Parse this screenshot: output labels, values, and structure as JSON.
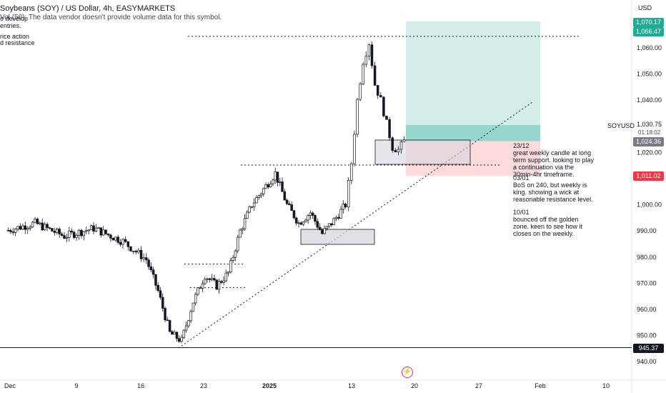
{
  "header": {
    "title": "Soybeans (SOY) / US Dollar, 4h, EASYMARKETS",
    "volume_note": "Vol (50): The data vendor doesn't provide volume data for this symbol."
  },
  "left_notes": [
    "o develop",
    "entries.",
    "",
    "rice action",
    "d resistance"
  ],
  "currency": "USD",
  "symbol": "SOYUSD",
  "countdown": "01:18:02",
  "annotations": [
    {
      "date": "23/12",
      "text": "great weekly candle at long term support. looking to play a continuation via the 30min-4hr timeframe."
    },
    {
      "date": "03/01",
      "text": "BoS on 240, but weekly is king. showing a wick at reasonable resistance level."
    },
    {
      "date": "10/01",
      "text": "bounced off the golden zone. keen to see how it closes on the weekly."
    }
  ],
  "price_labels": [
    {
      "value": "1,070.17",
      "color": "#22ab94"
    },
    {
      "value": "1,066.47",
      "color": "#22ab94"
    },
    {
      "value": "1,024.36",
      "color": "#787b86"
    },
    {
      "value": "1,011.02",
      "color": "#f23645"
    },
    {
      "value": "945.37",
      "color": "#131722"
    }
  ],
  "chart_data": {
    "type": "candlestick",
    "x_ticks": [
      "Dec",
      "9",
      "16",
      "23",
      "2025",
      "13",
      "20",
      "27",
      "Feb",
      "10"
    ],
    "y_ticks": [
      "1,060.00",
      "1,050.00",
      "1,040.00",
      "1,030.75",
      "1,020.00",
      "1,000.00",
      "990.00",
      "980.00",
      "970.00",
      "960.00",
      "950.00",
      "940.00"
    ],
    "ylim": [
      938,
      1076
    ],
    "series": [
      {
        "name": "SOYUSD",
        "close_path": [
          {
            "x": 0,
            "y": 990
          },
          {
            "x": 5,
            "y": 993
          },
          {
            "x": 10,
            "y": 988
          },
          {
            "x": 15,
            "y": 991
          },
          {
            "x": 20,
            "y": 986
          },
          {
            "x": 24,
            "y": 979
          },
          {
            "x": 26,
            "y": 967
          },
          {
            "x": 28,
            "y": 951
          },
          {
            "x": 30,
            "y": 948
          },
          {
            "x": 32,
            "y": 963
          },
          {
            "x": 34,
            "y": 973
          },
          {
            "x": 36,
            "y": 969
          },
          {
            "x": 38,
            "y": 974
          },
          {
            "x": 40,
            "y": 990
          },
          {
            "x": 42,
            "y": 1000
          },
          {
            "x": 44,
            "y": 1006
          },
          {
            "x": 46,
            "y": 1012
          },
          {
            "x": 48,
            "y": 1000
          },
          {
            "x": 50,
            "y": 993
          },
          {
            "x": 52,
            "y": 997
          },
          {
            "x": 54,
            "y": 989
          },
          {
            "x": 56,
            "y": 994
          },
          {
            "x": 58,
            "y": 1000
          },
          {
            "x": 59,
            "y": 1016
          },
          {
            "x": 60,
            "y": 1040
          },
          {
            "x": 61,
            "y": 1055
          },
          {
            "x": 62,
            "y": 1062
          },
          {
            "x": 63,
            "y": 1046
          },
          {
            "x": 64,
            "y": 1040
          },
          {
            "x": 65,
            "y": 1031
          },
          {
            "x": 66,
            "y": 1022
          },
          {
            "x": 67,
            "y": 1021
          },
          {
            "x": 68,
            "y": 1024.36
          }
        ]
      }
    ],
    "levels": [
      {
        "name": "resistance",
        "value": 1064.4
      },
      {
        "name": "structure",
        "value": 1015.2
      },
      {
        "name": "support",
        "value": 945.37
      },
      {
        "name": "range-high",
        "value": 977.3
      },
      {
        "name": "range-low",
        "value": 968.3
      }
    ],
    "position": {
      "entry": 1024.36,
      "target": 1070.17,
      "stop": 1011.02
    }
  }
}
